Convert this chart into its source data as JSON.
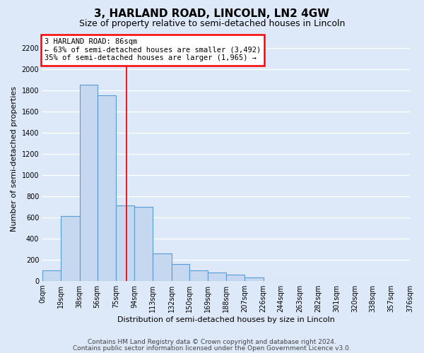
{
  "title": "3, HARLAND ROAD, LINCOLN, LN2 4GW",
  "subtitle": "Size of property relative to semi-detached houses in Lincoln",
  "xlabel": "Distribution of semi-detached houses by size in Lincoln",
  "ylabel": "Number of semi-detached properties",
  "footnote1": "Contains HM Land Registry data © Crown copyright and database right 2024.",
  "footnote2": "Contains public sector information licensed under the Open Government Licence v3.0.",
  "bin_edges": [
    0,
    19,
    38,
    56,
    75,
    94,
    113,
    132,
    150,
    169,
    188,
    207,
    226,
    244,
    263,
    282,
    301,
    320,
    338,
    357,
    376
  ],
  "bar_heights": [
    100,
    610,
    1850,
    1750,
    710,
    700,
    255,
    155,
    100,
    75,
    55,
    30,
    0,
    0,
    0,
    0,
    0,
    0,
    0,
    0
  ],
  "tick_labels": [
    "0sqm",
    "19sqm",
    "38sqm",
    "56sqm",
    "75sqm",
    "94sqm",
    "113sqm",
    "132sqm",
    "150sqm",
    "169sqm",
    "188sqm",
    "207sqm",
    "226sqm",
    "244sqm",
    "263sqm",
    "282sqm",
    "301sqm",
    "320sqm",
    "338sqm",
    "357sqm",
    "376sqm"
  ],
  "bar_color": "#c5d8ef",
  "bar_edge_color": "#5b9bd5",
  "property_line_x": 86,
  "annotation_line1": "3 HARLAND ROAD: 86sqm",
  "annotation_line2": "← 63% of semi-detached houses are smaller (3,492)",
  "annotation_line3": "35% of semi-detached houses are larger (1,965) →",
  "annotation_box_facecolor": "white",
  "annotation_box_edgecolor": "red",
  "ylim": [
    0,
    2300
  ],
  "yticks": [
    0,
    200,
    400,
    600,
    800,
    1000,
    1200,
    1400,
    1600,
    1800,
    2000,
    2200
  ],
  "bg_color": "#dde8f8",
  "plot_bg_color": "#dde8f8",
  "grid_color": "white",
  "title_fontsize": 11,
  "subtitle_fontsize": 9,
  "axis_label_fontsize": 8,
  "tick_fontsize": 7,
  "annotation_fontsize": 7.5,
  "footnote_fontsize": 6.5
}
